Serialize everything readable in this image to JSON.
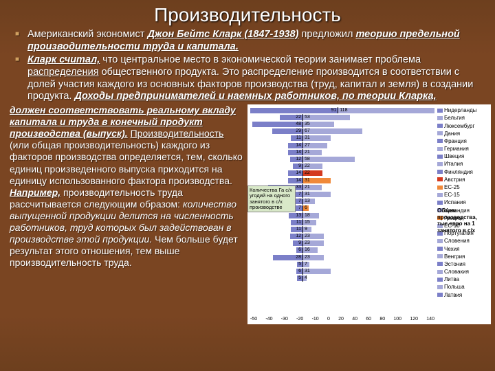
{
  "title": "Производительность",
  "bullet1": {
    "pre": "Американский экономист ",
    "name": "Джон Бейтс Кларк (1847-1938)",
    "post": " предложил ",
    "theory": "теорию предельной производительности труда и капитала."
  },
  "bullet2": {
    "lead": "Кларк считал,",
    "mid1": " что центральное место в экономической теории занимает проблема ",
    "dist": "распределения",
    "mid2": " общественного продукта. Это распределение производится в соответствии с долей участия каждого из основных факторов производства (труд, капитал и земля) в создании продукта. ",
    "tail": "Доходы предпринимателей и наемных работников, по теории Кларка,"
  },
  "left": {
    "p1a": "должен соответствовать реальному вкладу капитала и труда в конечный продукт производства (выпуск).",
    "p1b_u": "Производительность",
    "p1b": " (или общая производительность) каждого из факторов производства определяется, тем, сколько единиц произведенного выпуска приходится на единицу использованного фактора производства.",
    "p2a": "Например,",
    "p2b": " производительность труда рассчитывается следующим образом: ",
    "p2c": "количество выпущенной продукции делится на численность работников, труд которых был задействован в производстве этой продукции.",
    "p2d": " Чем больше будет результат этого отношения, тем выше производительность труда."
  },
  "chart": {
    "greenbox": "Количества Га с/х угодий на одного занятого в с/х производстве",
    "right_axis": "Объем производства, тыс.евро на 1 занятого в с/х",
    "legend_countries": [
      "Нидерланды",
      "Бельгия",
      "Люксембург",
      "Дания",
      "Франция",
      "Германия",
      "Швеция",
      "Италия",
      "Финляндия",
      "Австрия",
      "ЕС-25",
      "ЕС-15",
      "Испания",
      "Ирландия",
      "Греция",
      "ЕС-10",
      "Португалия",
      "Словения",
      "Чехия",
      "Венгрия",
      "Эстония",
      "Словакия",
      "Литва",
      "Польша",
      "Латвия"
    ],
    "rows": [
      {
        "l": 91,
        "r": 118,
        "rclass": ""
      },
      {
        "l": 22,
        "r": 53,
        "rclass": ""
      },
      {
        "l": 48,
        "r": 35,
        "rclass": ""
      },
      {
        "l": 29,
        "r": 67,
        "rclass": ""
      },
      {
        "l": 11,
        "r": 31,
        "rclass": ""
      },
      {
        "l": 14,
        "r": 27,
        "rclass": ""
      },
      {
        "l": 14,
        "r": 21,
        "rclass": ""
      },
      {
        "l": 12,
        "r": 58,
        "rclass": ""
      },
      {
        "l": 9,
        "r": 22,
        "rclass": ""
      },
      {
        "l": 14,
        "r": 22,
        "rclass": "red"
      },
      {
        "l": 14,
        "r": 31,
        "rclass": "orange"
      },
      {
        "l": 33,
        "r": 21,
        "rclass": ""
      },
      {
        "l": 7,
        "r": 31,
        "rclass": ""
      },
      {
        "l": 7,
        "r": 13,
        "rclass": ""
      },
      {
        "l": 7,
        "r": 6,
        "rclass": "orange"
      },
      {
        "l": 13,
        "r": 18,
        "rclass": ""
      },
      {
        "l": 11,
        "r": 15,
        "rclass": ""
      },
      {
        "l": 11,
        "r": 9,
        "rclass": ""
      },
      {
        "l": 12,
        "r": 23,
        "rclass": ""
      },
      {
        "l": 9,
        "r": 23,
        "rclass": ""
      },
      {
        "l": 6,
        "r": 16,
        "rclass": ""
      },
      {
        "l": 28,
        "r": 23,
        "rclass": ""
      },
      {
        "l": 5,
        "r": 7,
        "rclass": ""
      },
      {
        "l": 6,
        "r": 31,
        "rclass": ""
      },
      {
        "l": 5,
        "r": 4,
        "rclass": ""
      }
    ],
    "xaxis": [
      "-50",
      "-40",
      "-30",
      "-20",
      "-10",
      "0",
      "20",
      "40",
      "60",
      "80",
      "100",
      "120",
      "140"
    ]
  }
}
